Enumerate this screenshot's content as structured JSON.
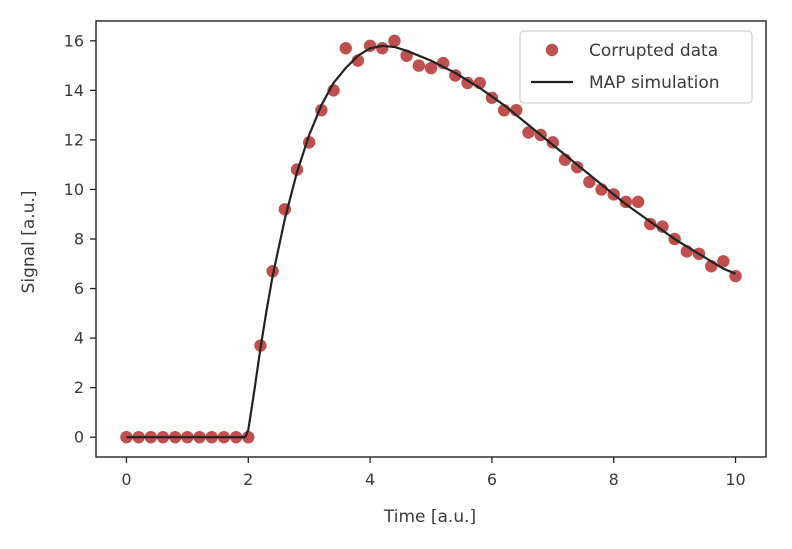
{
  "chart_data": {
    "type": "line",
    "title": "",
    "xlabel": "Time [a.u.]",
    "ylabel": "Signal [a.u.]",
    "xlim": [
      -0.5,
      10.5
    ],
    "ylim": [
      -0.8,
      16.8
    ],
    "xticks": [
      0,
      2,
      4,
      6,
      8,
      10
    ],
    "yticks": [
      0,
      2,
      4,
      6,
      8,
      10,
      12,
      14,
      16
    ],
    "legend_position": "top-right",
    "grid": false,
    "series": [
      {
        "name": "Corrupted data",
        "kind": "scatter",
        "color": "#c0504d",
        "x": [
          0.0,
          0.2,
          0.4,
          0.6,
          0.8,
          1.0,
          1.2,
          1.4,
          1.6,
          1.8,
          2.0,
          2.2,
          2.4,
          2.6,
          2.8,
          3.0,
          3.2,
          3.4,
          3.6,
          3.8,
          4.0,
          4.2,
          4.4,
          4.6,
          4.8,
          5.0,
          5.2,
          5.4,
          5.6,
          5.8,
          6.0,
          6.2,
          6.4,
          6.6,
          6.8,
          7.0,
          7.2,
          7.4,
          7.6,
          7.8,
          8.0,
          8.2,
          8.4,
          8.6,
          8.8,
          9.0,
          9.2,
          9.4,
          9.6,
          9.8,
          10.0
        ],
        "y": [
          0.0,
          0.0,
          0.0,
          0.0,
          0.0,
          0.0,
          0.0,
          0.0,
          0.0,
          0.0,
          0.0,
          3.7,
          6.7,
          9.2,
          10.8,
          11.9,
          13.2,
          14.0,
          15.7,
          15.2,
          15.8,
          15.7,
          16.0,
          15.4,
          15.0,
          14.9,
          15.1,
          14.6,
          14.3,
          14.3,
          13.7,
          13.2,
          13.2,
          12.3,
          12.2,
          11.9,
          11.2,
          10.9,
          10.3,
          10.0,
          9.8,
          9.5,
          9.5,
          8.6,
          8.5,
          8.0,
          7.5,
          7.4,
          6.9,
          7.1,
          6.5
        ]
      },
      {
        "name": "MAP simulation",
        "kind": "line",
        "color": "#222222",
        "x": [
          0.0,
          1.0,
          1.95,
          2.0,
          2.1,
          2.2,
          2.3,
          2.4,
          2.6,
          2.8,
          3.0,
          3.2,
          3.4,
          3.6,
          3.8,
          4.0,
          4.2,
          4.4,
          4.6,
          4.8,
          5.0,
          5.4,
          5.8,
          6.2,
          6.6,
          7.0,
          7.4,
          7.8,
          8.2,
          8.6,
          9.0,
          9.4,
          9.8,
          10.0
        ],
        "y": [
          0.0,
          0.0,
          0.0,
          0.3,
          1.9,
          3.6,
          5.1,
          6.5,
          8.8,
          10.7,
          12.2,
          13.4,
          14.3,
          14.9,
          15.4,
          15.7,
          15.8,
          15.75,
          15.6,
          15.4,
          15.2,
          14.7,
          14.1,
          13.4,
          12.6,
          11.8,
          11.0,
          10.2,
          9.4,
          8.7,
          8.0,
          7.4,
          6.8,
          6.6
        ]
      }
    ]
  }
}
